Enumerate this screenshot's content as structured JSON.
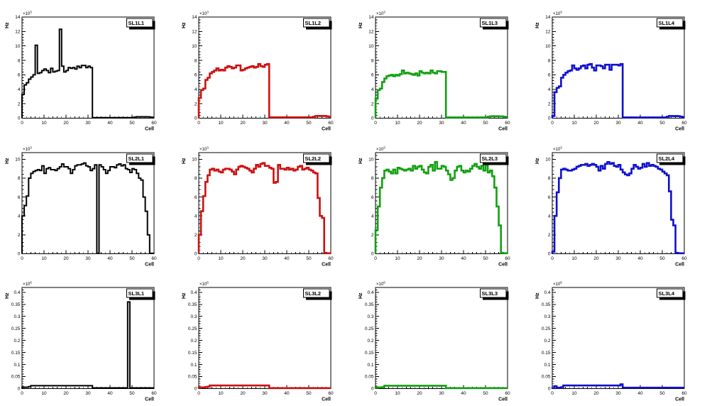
{
  "page": {
    "background": "#ffffff"
  },
  "layout": {
    "xlabel": "Cell",
    "ylabel": "Hz",
    "xlim": [
      0,
      60
    ],
    "x_ticks": [
      0,
      10,
      20,
      30,
      40,
      50,
      60
    ],
    "x_tick_labels": [
      "0",
      "10",
      "20",
      "30",
      "40",
      "50",
      "60"
    ],
    "x_minor_step": 2,
    "exponent_base": "×10",
    "grid": false,
    "legend_position": "top-right",
    "rows": [
      {
        "y_axis_max": 14,
        "ytick_vals": [
          0,
          2,
          4,
          6,
          8,
          10,
          12,
          14
        ],
        "ytick_labels": [
          "0",
          "2",
          "4",
          "6",
          "8",
          "10",
          "12",
          "14"
        ],
        "y_minor_step": 0.4,
        "exponent_power": "3"
      },
      {
        "y_axis_max": 10.7,
        "ytick_vals": [
          0,
          2,
          4,
          6,
          8,
          10
        ],
        "ytick_labels": [
          "0",
          "2",
          "4",
          "6",
          "8",
          "10"
        ],
        "y_minor_step": 0.4,
        "exponent_power": "3"
      },
      {
        "y_axis_max": 0.42,
        "ytick_vals": [
          0,
          0.05,
          0.1,
          0.15,
          0.2,
          0.25,
          0.3,
          0.35,
          0.4
        ],
        "ytick_labels": [
          "0",
          "0.05",
          "0.1",
          "0.15",
          "0.2",
          "0.25",
          "0.3",
          "0.35",
          "0.4"
        ],
        "y_minor_step": 0.01,
        "exponent_power": "6"
      }
    ],
    "colors": {
      "black": "#000000",
      "red": "#cc1111",
      "green": "#11a011",
      "blue": "#1111cc"
    }
  },
  "chart_data": [
    {
      "type": "line",
      "style": "histogram-step",
      "title": "SL1L1",
      "row": 0,
      "color": "#000000",
      "bins": 60,
      "values": [
        3.3,
        4.6,
        4.9,
        5.4,
        5.7,
        6.0,
        10.1,
        6.2,
        6.3,
        6.6,
        6.8,
        6.6,
        6.3,
        6.9,
        6.4,
        6.5,
        6.6,
        12.3,
        7.2,
        6.4,
        6.6,
        7.0,
        6.9,
        7.0,
        6.8,
        7.2,
        7.0,
        7.3,
        7.3,
        7.0,
        7.2,
        7.0,
        0.08,
        0.08,
        0.08,
        0.08,
        0.08,
        0.08,
        0.08,
        0.08,
        0.08,
        0.08,
        0.08,
        0.08,
        0.08,
        0.08,
        0.08,
        0.08,
        0.08,
        0.08,
        0.1,
        0.15,
        0.2,
        0.18,
        0.2,
        0.18,
        0.2,
        0.18,
        0.15,
        0.12
      ]
    },
    {
      "type": "line",
      "style": "histogram-step",
      "title": "SL1L2",
      "row": 0,
      "color": "#cc1111",
      "bins": 60,
      "values": [
        2.8,
        3.9,
        4.1,
        5.3,
        5.6,
        6.2,
        6.4,
        6.6,
        6.9,
        6.6,
        6.7,
        6.6,
        7.0,
        7.2,
        7.1,
        6.9,
        7.0,
        7.3,
        7.3,
        6.6,
        6.7,
        6.9,
        7.0,
        7.1,
        7.2,
        7.0,
        7.1,
        7.5,
        7.2,
        7.1,
        7.4,
        7.5,
        0.12,
        0.12,
        0.12,
        0.12,
        0.12,
        0.12,
        0.12,
        0.12,
        0.12,
        0.12,
        0.12,
        0.12,
        0.12,
        0.12,
        0.12,
        0.12,
        0.12,
        0.12,
        0.12,
        0.12,
        0.2,
        0.3,
        0.32,
        0.3,
        0.32,
        0.3,
        0.25,
        0.2
      ]
    },
    {
      "type": "line",
      "style": "histogram-step",
      "title": "SL1L3",
      "row": 0,
      "color": "#11a011",
      "bins": 60,
      "values": [
        2.7,
        3.9,
        4.1,
        5.0,
        5.5,
        5.8,
        5.9,
        6.0,
        5.8,
        6.0,
        5.9,
        6.1,
        6.6,
        6.2,
        6.3,
        6.2,
        6.1,
        6.0,
        6.2,
        5.9,
        6.5,
        6.3,
        6.2,
        6.3,
        6.2,
        6.6,
        6.3,
        6.2,
        6.5,
        6.5,
        6.4,
        6.4,
        0.1,
        0.1,
        0.1,
        0.1,
        0.1,
        0.1,
        0.1,
        0.1,
        0.1,
        0.1,
        0.1,
        0.1,
        0.1,
        0.1,
        0.1,
        0.1,
        0.1,
        0.1,
        0.1,
        0.2,
        0.25,
        0.28,
        0.25,
        0.28,
        0.25,
        0.25,
        0.2,
        0.15
      ]
    },
    {
      "type": "line",
      "style": "histogram-step",
      "title": "SL1L4",
      "row": 0,
      "color": "#1111cc",
      "bins": 60,
      "values": [
        0.3,
        3.6,
        4.2,
        4.4,
        5.6,
        6.0,
        6.3,
        6.5,
        6.6,
        7.3,
        6.9,
        6.7,
        6.9,
        7.2,
        7.3,
        6.9,
        7.4,
        7.5,
        7.0,
        6.6,
        7.3,
        7.3,
        7.2,
        6.9,
        7.4,
        7.4,
        6.7,
        7.4,
        7.4,
        7.4,
        7.3,
        7.5,
        0.1,
        0.1,
        0.1,
        0.1,
        0.1,
        0.1,
        0.1,
        0.1,
        0.1,
        0.1,
        0.1,
        0.1,
        0.1,
        0.1,
        0.1,
        0.1,
        0.1,
        0.1,
        0.1,
        0.1,
        0.2,
        0.3,
        0.3,
        0.28,
        0.3,
        0.28,
        0.22,
        0.15
      ]
    },
    {
      "type": "line",
      "style": "histogram-step",
      "title": "SL2L1",
      "row": 1,
      "color": "#000000",
      "bins": 60,
      "values": [
        4.0,
        5.1,
        6.1,
        8.0,
        8.5,
        8.7,
        8.8,
        8.9,
        8.8,
        9.3,
        8.5,
        9.0,
        9.1,
        8.9,
        8.9,
        8.8,
        9.0,
        9.2,
        9.5,
        9.2,
        9.2,
        9.0,
        8.5,
        8.9,
        9.3,
        9.4,
        9.4,
        9.5,
        9.6,
        9.3,
        9.2,
        8.8,
        9.0,
        9.4,
        0.05,
        9.4,
        9.2,
        8.9,
        8.5,
        8.8,
        9.2,
        9.2,
        9.1,
        9.4,
        9.5,
        9.3,
        9.4,
        9.0,
        8.9,
        8.6,
        9.0,
        8.9,
        8.5,
        8.0,
        7.8,
        6.0,
        4.5,
        2.0,
        0.05,
        0.05
      ]
    },
    {
      "type": "line",
      "style": "histogram-step",
      "title": "SL2L2",
      "row": 1,
      "color": "#cc1111",
      "bins": 60,
      "values": [
        2.0,
        4.5,
        6.1,
        7.6,
        8.3,
        8.9,
        9.0,
        8.8,
        8.9,
        8.7,
        8.6,
        8.9,
        9.0,
        9.0,
        8.9,
        8.7,
        8.4,
        8.9,
        9.2,
        9.3,
        9.2,
        9.1,
        9.0,
        8.8,
        8.6,
        9.0,
        9.4,
        9.2,
        9.5,
        9.6,
        9.3,
        9.3,
        9.1,
        9.0,
        7.5,
        7.6,
        9.4,
        9.0,
        9.0,
        8.9,
        9.1,
        8.9,
        9.0,
        8.8,
        8.9,
        9.2,
        9.3,
        8.9,
        9.0,
        9.1,
        8.9,
        8.8,
        8.6,
        8.5,
        5.9,
        4.0,
        3.8,
        0.1,
        0.05,
        0.05
      ]
    },
    {
      "type": "line",
      "style": "histogram-step",
      "title": "SL2L3",
      "row": 1,
      "color": "#11a011",
      "bins": 60,
      "values": [
        2.5,
        5.0,
        7.0,
        8.0,
        8.8,
        8.9,
        8.7,
        8.5,
        8.9,
        8.5,
        9.1,
        9.0,
        8.9,
        8.8,
        8.9,
        9.0,
        8.8,
        9.3,
        9.0,
        9.2,
        9.3,
        8.9,
        8.6,
        8.5,
        9.2,
        9.4,
        8.8,
        9.7,
        9.0,
        9.0,
        9.3,
        9.2,
        8.8,
        8.4,
        7.8,
        8.0,
        8.8,
        9.2,
        9.3,
        8.8,
        8.6,
        8.8,
        8.7,
        9.0,
        9.3,
        9.5,
        9.2,
        9.0,
        9.3,
        8.8,
        9.4,
        8.6,
        8.8,
        8.2,
        7.0,
        5.0,
        3.0,
        0.1,
        0.05,
        0.05
      ]
    },
    {
      "type": "line",
      "style": "histogram-step",
      "title": "SL2L4",
      "row": 1,
      "color": "#1111cc",
      "bins": 60,
      "values": [
        0.2,
        4.0,
        6.5,
        8.0,
        8.9,
        9.0,
        8.9,
        8.8,
        8.8,
        8.9,
        9.0,
        9.2,
        9.3,
        9.4,
        9.4,
        9.5,
        9.3,
        9.4,
        9.5,
        9.4,
        9.2,
        8.8,
        9.3,
        9.0,
        9.5,
        9.7,
        9.5,
        9.6,
        9.3,
        9.2,
        9.4,
        8.9,
        8.6,
        8.4,
        8.3,
        8.5,
        9.0,
        9.4,
        9.2,
        9.0,
        9.1,
        9.5,
        9.2,
        9.6,
        9.3,
        9.4,
        9.3,
        9.2,
        9.0,
        8.9,
        8.7,
        8.5,
        8.3,
        6.6,
        3.6,
        3.0,
        0.1,
        0.05,
        0.05,
        0.05
      ]
    },
    {
      "type": "line",
      "style": "histogram-step",
      "title": "SL3L1",
      "row": 2,
      "color": "#000000",
      "bins": 60,
      "values": [
        0.005,
        0.006,
        0.006,
        0.008,
        0.012,
        0.012,
        0.012,
        0.012,
        0.012,
        0.012,
        0.012,
        0.012,
        0.012,
        0.012,
        0.012,
        0.012,
        0.012,
        0.012,
        0.012,
        0.012,
        0.012,
        0.012,
        0.012,
        0.012,
        0.012,
        0.012,
        0.012,
        0.012,
        0.012,
        0.012,
        0.012,
        0.012,
        0.003,
        0.003,
        0.003,
        0.003,
        0.003,
        0.003,
        0.003,
        0.003,
        0.003,
        0.003,
        0.003,
        0.003,
        0.003,
        0.003,
        0.003,
        0.003,
        0.36,
        0.003,
        0.003,
        0.003,
        0.003,
        0.003,
        0.003,
        0.003,
        0.003,
        0.003,
        0.003,
        0.003
      ]
    },
    {
      "type": "line",
      "style": "histogram-step",
      "title": "SL3L2",
      "row": 2,
      "color": "#cc1111",
      "bins": 60,
      "values": [
        0.004,
        0.005,
        0.005,
        0.007,
        0.008,
        0.013,
        0.013,
        0.013,
        0.013,
        0.013,
        0.013,
        0.013,
        0.013,
        0.013,
        0.013,
        0.013,
        0.013,
        0.013,
        0.013,
        0.013,
        0.013,
        0.013,
        0.013,
        0.013,
        0.013,
        0.013,
        0.013,
        0.013,
        0.013,
        0.013,
        0.013,
        0.013,
        0.002,
        0.002,
        0.002,
        0.002,
        0.002,
        0.002,
        0.002,
        0.002,
        0.002,
        0.002,
        0.002,
        0.002,
        0.002,
        0.002,
        0.002,
        0.002,
        0.002,
        0.002,
        0.002,
        0.002,
        0.002,
        0.002,
        0.002,
        0.002,
        0.002,
        0.002,
        0.002,
        0.002
      ]
    },
    {
      "type": "line",
      "style": "histogram-step",
      "title": "SL3L3",
      "row": 2,
      "color": "#11a011",
      "bins": 60,
      "values": [
        0.004,
        0.005,
        0.005,
        0.006,
        0.012,
        0.012,
        0.012,
        0.012,
        0.012,
        0.012,
        0.012,
        0.012,
        0.012,
        0.012,
        0.012,
        0.012,
        0.012,
        0.012,
        0.012,
        0.012,
        0.012,
        0.012,
        0.012,
        0.012,
        0.012,
        0.012,
        0.012,
        0.012,
        0.012,
        0.012,
        0.012,
        0.012,
        0.002,
        0.002,
        0.002,
        0.002,
        0.002,
        0.002,
        0.002,
        0.002,
        0.002,
        0.002,
        0.002,
        0.002,
        0.002,
        0.002,
        0.002,
        0.002,
        0.002,
        0.002,
        0.002,
        0.002,
        0.002,
        0.002,
        0.002,
        0.002,
        0.002,
        0.002,
        0.002,
        0.002
      ]
    },
    {
      "type": "line",
      "style": "histogram-step",
      "title": "SL3L4",
      "row": 2,
      "color": "#1111cc",
      "bins": 60,
      "values": [
        0.002,
        0.01,
        0.004,
        0.004,
        0.006,
        0.013,
        0.013,
        0.013,
        0.013,
        0.013,
        0.013,
        0.013,
        0.013,
        0.013,
        0.013,
        0.013,
        0.013,
        0.013,
        0.013,
        0.013,
        0.013,
        0.013,
        0.013,
        0.013,
        0.013,
        0.013,
        0.013,
        0.013,
        0.013,
        0.013,
        0.013,
        0.018,
        0.004,
        0.004,
        0.004,
        0.004,
        0.004,
        0.004,
        0.004,
        0.004,
        0.004,
        0.004,
        0.004,
        0.004,
        0.004,
        0.004,
        0.004,
        0.004,
        0.004,
        0.004,
        0.004,
        0.004,
        0.004,
        0.004,
        0.004,
        0.004,
        0.004,
        0.004,
        0.004,
        0.004
      ]
    }
  ]
}
